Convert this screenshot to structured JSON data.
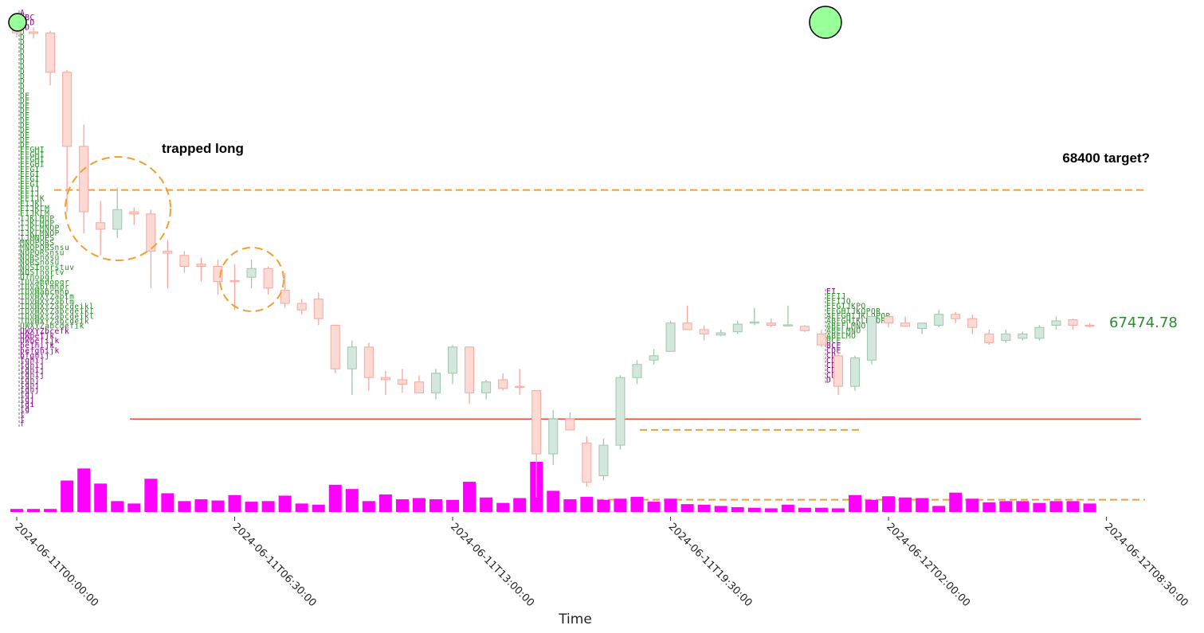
{
  "chart_data": {
    "type": "candlestick",
    "xlabel": "Time",
    "x_ticks": [
      "2024-06-11T00:00:00",
      "2024-06-11T06:30:00",
      "2024-06-11T13:00:00",
      "2024-06-11T19:30:00",
      "2024-06-12T02:00:00",
      "2024-06-12T08:30:00"
    ],
    "interval_minutes": 30,
    "price_axis_visible": false,
    "last_price_label": "67474.78",
    "annotations": [
      {
        "text": "trapped long",
        "kind": "label"
      },
      {
        "text": "68400 target?",
        "kind": "label"
      }
    ],
    "level_lines": [
      {
        "name": "target",
        "price": 68400,
        "style": "dashed",
        "color": "#f0a030"
      },
      {
        "name": "support",
        "price": 67350,
        "style": "solid",
        "color": "#e74c3c"
      },
      {
        "name": "local-low-1",
        "price": 67300,
        "style": "dashed",
        "color": "#f0a030"
      },
      {
        "name": "local-low-2",
        "price": 66980,
        "style": "dashed",
        "color": "#f0a030"
      }
    ],
    "colors": {
      "up": "#d3e7dc",
      "up_edge": "#9dc7ae",
      "down": "#fdd9d3",
      "down_edge": "#f5a8a0",
      "volume": "#ff00ff",
      "annotation": "#f0a030",
      "support": "#e74c3c",
      "tpo_green": "#228b22",
      "tpo_purple": "#800080",
      "marker": "#99ff99"
    },
    "candles": [
      {
        "o": 69130,
        "h": 69160,
        "l": 69100,
        "c": 69120
      },
      {
        "o": 69125,
        "h": 69145,
        "l": 69095,
        "c": 69118
      },
      {
        "o": 69120,
        "h": 69130,
        "l": 68880,
        "c": 68940
      },
      {
        "o": 68940,
        "h": 68950,
        "l": 68300,
        "c": 68600
      },
      {
        "o": 68600,
        "h": 68700,
        "l": 68200,
        "c": 68300
      },
      {
        "o": 68250,
        "h": 68350,
        "l": 68100,
        "c": 68220
      },
      {
        "o": 68220,
        "h": 68410,
        "l": 68180,
        "c": 68310
      },
      {
        "o": 68300,
        "h": 68320,
        "l": 68240,
        "c": 68290
      },
      {
        "o": 68290,
        "h": 68310,
        "l": 67950,
        "c": 68120
      },
      {
        "o": 68120,
        "h": 68170,
        "l": 67950,
        "c": 68110
      },
      {
        "o": 68100,
        "h": 68120,
        "l": 68020,
        "c": 68050
      },
      {
        "o": 68060,
        "h": 68090,
        "l": 67980,
        "c": 68050
      },
      {
        "o": 68050,
        "h": 68080,
        "l": 67920,
        "c": 67980
      },
      {
        "o": 67985,
        "h": 68060,
        "l": 67850,
        "c": 67980
      },
      {
        "o": 68000,
        "h": 68080,
        "l": 67950,
        "c": 68040
      },
      {
        "o": 68040,
        "h": 68050,
        "l": 67920,
        "c": 67950
      },
      {
        "o": 67940,
        "h": 68020,
        "l": 67860,
        "c": 67880
      },
      {
        "o": 67880,
        "h": 67900,
        "l": 67830,
        "c": 67850
      },
      {
        "o": 67900,
        "h": 67930,
        "l": 67780,
        "c": 67810
      },
      {
        "o": 67780,
        "h": 67780,
        "l": 67560,
        "c": 67580
      },
      {
        "o": 67580,
        "h": 67710,
        "l": 67460,
        "c": 67680
      },
      {
        "o": 67680,
        "h": 67700,
        "l": 67480,
        "c": 67540
      },
      {
        "o": 67540,
        "h": 67570,
        "l": 67460,
        "c": 67530
      },
      {
        "o": 67530,
        "h": 67580,
        "l": 67470,
        "c": 67510
      },
      {
        "o": 67520,
        "h": 67550,
        "l": 67470,
        "c": 67470
      },
      {
        "o": 67470,
        "h": 67580,
        "l": 67440,
        "c": 67560
      },
      {
        "o": 67560,
        "h": 67690,
        "l": 67510,
        "c": 67680
      },
      {
        "o": 67680,
        "h": 67680,
        "l": 67420,
        "c": 67470
      },
      {
        "o": 67470,
        "h": 67530,
        "l": 67440,
        "c": 67520
      },
      {
        "o": 67530,
        "h": 67560,
        "l": 67480,
        "c": 67490
      },
      {
        "o": 67500,
        "h": 67580,
        "l": 67460,
        "c": 67495
      },
      {
        "o": 67480,
        "h": 67480,
        "l": 66990,
        "c": 67190
      },
      {
        "o": 67190,
        "h": 67390,
        "l": 67140,
        "c": 67350
      },
      {
        "o": 67350,
        "h": 67380,
        "l": 67300,
        "c": 67300
      },
      {
        "o": 67240,
        "h": 67270,
        "l": 67040,
        "c": 67060
      },
      {
        "o": 67090,
        "h": 67260,
        "l": 67070,
        "c": 67230
      },
      {
        "o": 67230,
        "h": 67550,
        "l": 67210,
        "c": 67540
      },
      {
        "o": 67540,
        "h": 67620,
        "l": 67510,
        "c": 67600
      },
      {
        "o": 67620,
        "h": 67670,
        "l": 67600,
        "c": 67640
      },
      {
        "o": 67660,
        "h": 67800,
        "l": 67660,
        "c": 67790
      },
      {
        "o": 67790,
        "h": 67870,
        "l": 67760,
        "c": 67760
      },
      {
        "o": 67760,
        "h": 67780,
        "l": 67710,
        "c": 67740
      },
      {
        "o": 67735,
        "h": 67760,
        "l": 67730,
        "c": 67745
      },
      {
        "o": 67750,
        "h": 67800,
        "l": 67740,
        "c": 67785
      },
      {
        "o": 67790,
        "h": 67860,
        "l": 67780,
        "c": 67795
      },
      {
        "o": 67790,
        "h": 67810,
        "l": 67770,
        "c": 67780
      },
      {
        "o": 67780,
        "h": 67870,
        "l": 67775,
        "c": 67782
      },
      {
        "o": 67775,
        "h": 67780,
        "l": 67750,
        "c": 67755
      },
      {
        "o": 67740,
        "h": 67760,
        "l": 67680,
        "c": 67690
      },
      {
        "o": 67640,
        "h": 67660,
        "l": 67460,
        "c": 67500
      },
      {
        "o": 67500,
        "h": 67640,
        "l": 67480,
        "c": 67630
      },
      {
        "o": 67620,
        "h": 67840,
        "l": 67600,
        "c": 67820
      },
      {
        "o": 67820,
        "h": 67830,
        "l": 67770,
        "c": 67790
      },
      {
        "o": 67790,
        "h": 67820,
        "l": 67775,
        "c": 67775
      },
      {
        "o": 67765,
        "h": 67790,
        "l": 67740,
        "c": 67790
      },
      {
        "o": 67780,
        "h": 67850,
        "l": 67770,
        "c": 67830
      },
      {
        "o": 67830,
        "h": 67840,
        "l": 67790,
        "c": 67810
      },
      {
        "o": 67810,
        "h": 67830,
        "l": 67740,
        "c": 67770
      },
      {
        "o": 67740,
        "h": 67760,
        "l": 67690,
        "c": 67700
      },
      {
        "o": 67710,
        "h": 67760,
        "l": 67700,
        "c": 67740
      },
      {
        "o": 67720,
        "h": 67750,
        "l": 67710,
        "c": 67740
      },
      {
        "o": 67720,
        "h": 67780,
        "l": 67710,
        "c": 67770
      },
      {
        "o": 67780,
        "h": 67820,
        "l": 67760,
        "c": 67800
      },
      {
        "o": 67805,
        "h": 67810,
        "l": 67760,
        "c": 67780
      },
      {
        "o": 67780,
        "h": 67790,
        "l": 67770,
        "c": 67775
      }
    ],
    "volumes": [
      5,
      5,
      5,
      52,
      72,
      47,
      18,
      14,
      55,
      31,
      18,
      21,
      19,
      28,
      17,
      18,
      27,
      14,
      12,
      45,
      38,
      18,
      29,
      21,
      23,
      21,
      20,
      50,
      24,
      15,
      23,
      83,
      35,
      21,
      25,
      20,
      22,
      25,
      17,
      22,
      13,
      12,
      10,
      8,
      7,
      6,
      12,
      7,
      7,
      6,
      28,
      20,
      26,
      24,
      23,
      10,
      32,
      22,
      16,
      18,
      18,
      15,
      18,
      18,
      14
    ]
  },
  "tpo_profiles": [
    {
      "name": "left",
      "rows": [
        {
          "text": "A",
          "color": "#800080"
        },
        {
          "text": "ABC",
          "color": "#800080"
        },
        {
          "text": "BCD",
          "color": "#800080"
        },
        {
          "text": "CD",
          "color": "#800080"
        },
        {
          "text": "D",
          "color": "#228b22"
        },
        {
          "text": "D",
          "color": "#228b22"
        },
        {
          "text": "D",
          "color": "#228b22"
        },
        {
          "text": "D",
          "color": "#228b22"
        },
        {
          "text": "D",
          "color": "#228b22"
        },
        {
          "text": "D",
          "color": "#228b22"
        },
        {
          "text": "D",
          "color": "#228b22"
        },
        {
          "text": "D",
          "color": "#228b22"
        },
        {
          "text": "D",
          "color": "#228b22"
        },
        {
          "text": "D",
          "color": "#228b22"
        },
        {
          "text": "D",
          "color": "#228b22"
        },
        {
          "text": "D",
          "color": "#228b22"
        },
        {
          "text": "D",
          "color": "#228b22"
        },
        {
          "text": "DE",
          "color": "#228b22"
        },
        {
          "text": "DE",
          "color": "#228b22"
        },
        {
          "text": "DE",
          "color": "#228b22"
        },
        {
          "text": "DE",
          "color": "#228b22"
        },
        {
          "text": "DE",
          "color": "#228b22"
        },
        {
          "text": "DE",
          "color": "#228b22"
        },
        {
          "text": "DE",
          "color": "#228b22"
        },
        {
          "text": "DE",
          "color": "#228b22"
        },
        {
          "text": "DE",
          "color": "#228b22"
        },
        {
          "text": "DE",
          "color": "#228b22"
        },
        {
          "text": "DE",
          "color": "#228b22"
        },
        {
          "text": "EFGHI",
          "color": "#228b22"
        },
        {
          "text": "EFGHI",
          "color": "#228b22"
        },
        {
          "text": "EFGHI",
          "color": "#228b22"
        },
        {
          "text": "EFGHI",
          "color": "#228b22"
        },
        {
          "text": "EFGI",
          "color": "#228b22"
        },
        {
          "text": "EFGI",
          "color": "#228b22"
        },
        {
          "text": "EFGI",
          "color": "#228b22"
        },
        {
          "text": "EFGI",
          "color": "#228b22"
        },
        {
          "text": "EFIJ",
          "color": "#228b22"
        },
        {
          "text": "EFIJ",
          "color": "#228b22"
        },
        {
          "text": "EFIJK",
          "color": "#228b22"
        },
        {
          "text": "EIJKL",
          "color": "#228b22"
        },
        {
          "text": "FIJKLM",
          "color": "#228b22"
        },
        {
          "text": "FIJKLM",
          "color": "#228b22"
        },
        {
          "text": "IJKLMOP",
          "color": "#228b22"
        },
        {
          "text": "IJKLMOP",
          "color": "#228b22"
        },
        {
          "text": "IJKLMNOP",
          "color": "#228b22"
        },
        {
          "text": "IJKLMNOP",
          "color": "#228b22"
        },
        {
          "text": "IJMNOPS",
          "color": "#228b22"
        },
        {
          "text": "MNOPQRS",
          "color": "#228b22"
        },
        {
          "text": "MNOPQRSnsu",
          "color": "#228b22"
        },
        {
          "text": "NOPQRSnsu",
          "color": "#228b22"
        },
        {
          "text": "NQRSnosu",
          "color": "#228b22"
        },
        {
          "text": "NQRSnosu",
          "color": "#228b22"
        },
        {
          "text": "NQSTnorstuv",
          "color": "#228b22"
        },
        {
          "text": "NQSTnortv",
          "color": "#228b22"
        },
        {
          "text": "QTnopqr",
          "color": "#228b22"
        },
        {
          "text": "TUVamnopqr",
          "color": "#228b22"
        },
        {
          "text": "TUVablmnpr",
          "color": "#228b22"
        },
        {
          "text": "TUVWabcmnp",
          "color": "#228b22"
        },
        {
          "text": "TUVWXYZablm",
          "color": "#228b22"
        },
        {
          "text": "TUVWXYZablm",
          "color": "#228b22"
        },
        {
          "text": "TUVWXYZabcdeikl",
          "color": "#228b22"
        },
        {
          "text": "TUVWXYZabcdeikl",
          "color": "#228b22"
        },
        {
          "text": "TUVWXYZabcdeikl",
          "color": "#228b22"
        },
        {
          "text": "TUVWXYZabcdeik",
          "color": "#228b22"
        },
        {
          "text": "UWXYZabcdefik",
          "color": "#228b22"
        },
        {
          "text": "UWXYZbcefk",
          "color": "#800080"
        },
        {
          "text": "UWbefjk",
          "color": "#800080"
        },
        {
          "text": "UWbefijk",
          "color": "#800080"
        },
        {
          "text": "befhijk",
          "color": "#800080"
        },
        {
          "text": "befghijk",
          "color": "#800080"
        },
        {
          "text": "bfghij",
          "color": "#800080"
        },
        {
          "text": "fghij",
          "color": "#800080"
        },
        {
          "text": "fghij",
          "color": "#800080"
        },
        {
          "text": "fghij",
          "color": "#800080"
        },
        {
          "text": "fghij",
          "color": "#800080"
        },
        {
          "text": "fghj",
          "color": "#800080"
        },
        {
          "text": "fghj",
          "color": "#800080"
        },
        {
          "text": "fghj",
          "color": "#800080"
        },
        {
          "text": "fgj",
          "color": "#800080"
        },
        {
          "text": "fgj",
          "color": "#800080"
        },
        {
          "text": "fgi",
          "color": "#800080"
        },
        {
          "text": "fg",
          "color": "#800080"
        },
        {
          "text": "f",
          "color": "#800080"
        },
        {
          "text": "f",
          "color": "#800080"
        },
        {
          "text": "f",
          "color": "#800080"
        }
      ]
    },
    {
      "name": "right",
      "rows": [
        {
          "text": "EI",
          "color": "#800080"
        },
        {
          "text": "EFIJ",
          "color": "#228b22"
        },
        {
          "text": "EFIJQ",
          "color": "#228b22"
        },
        {
          "text": "EFGIJKPQ",
          "color": "#228b22"
        },
        {
          "text": "EFGHIJKOPQR",
          "color": "#228b22"
        },
        {
          "text": "AEFGHIJKLOPQR",
          "color": "#228b22"
        },
        {
          "text": "ABFGHIKLMNOP",
          "color": "#228b22"
        },
        {
          "text": "ABEFLMNO",
          "color": "#228b22"
        },
        {
          "text": "ABELMNO",
          "color": "#228b22"
        },
        {
          "text": "ABELMO",
          "color": "#228b22"
        },
        {
          "text": "BCE",
          "color": "#228b22"
        },
        {
          "text": "BCE",
          "color": "#800080"
        },
        {
          "text": "CDE",
          "color": "#800080"
        },
        {
          "text": "CD",
          "color": "#800080"
        },
        {
          "text": "CD",
          "color": "#800080"
        },
        {
          "text": "CD",
          "color": "#800080"
        },
        {
          "text": "CD",
          "color": "#800080"
        },
        {
          "text": "CD",
          "color": "#800080"
        },
        {
          "text": "D",
          "color": "#800080"
        }
      ]
    }
  ]
}
